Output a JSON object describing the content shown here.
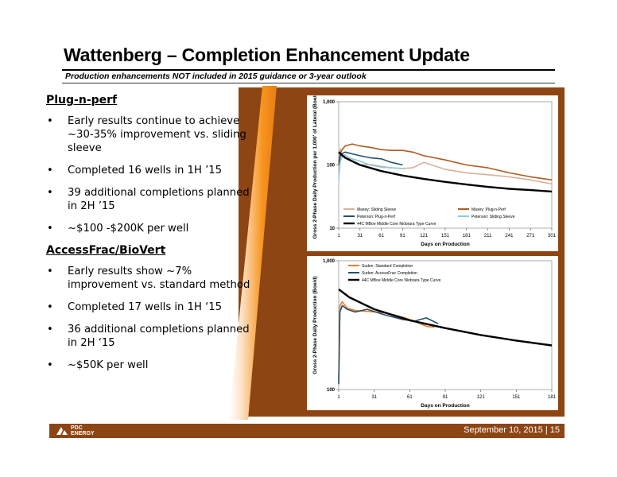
{
  "header": {
    "title": "Wattenberg – Completion Enhancement Update",
    "subtitle": "Production enhancements NOT included in 2015 guidance or 3-year outlook"
  },
  "plug_n_perf": {
    "heading": "Plug-n-perf",
    "bullets": [
      "Early results continue to achieve ~30-35% improvement vs. sliding sleeve",
      "Completed 16 wells in 1H ’15",
      "39 additional completions planned in 2H ’15",
      "~$100 -$200K per well"
    ]
  },
  "accessfrac": {
    "heading": "AccessFrac/BioVert",
    "bullets": [
      "Early results show ~7% improvement vs. standard method",
      "Completed 17 wells in 1H ‘15",
      "36 additional completions planned in 2H ‘15",
      "~$50K per well"
    ]
  },
  "footer": {
    "date": "September 10, 2015  |  15",
    "logo_line1": "PDC",
    "logo_line2": "ENERGY"
  },
  "chart_data": [
    {
      "type": "line",
      "xlabel": "Days on Production",
      "ylabel": "Gross 2-Phase Daily Production per 1,000' of Lateral (Boe/d)",
      "x_ticks": [
        1,
        31,
        61,
        91,
        121,
        151,
        181,
        211,
        241,
        271,
        301
      ],
      "y_ticks": [
        "10",
        "100",
        "1,000"
      ],
      "xlim": [
        1,
        301
      ],
      "ylim": [
        10,
        1000
      ],
      "y_scale": "log",
      "grid": false,
      "legend_position": "bottom",
      "series": [
        {
          "name": "Maxey: Sliding Sleeve",
          "color": "#d7b199",
          "x": [
            1,
            3,
            5,
            10,
            20,
            31,
            45,
            61,
            75,
            91,
            105,
            121,
            151,
            181,
            211,
            241,
            271,
            301
          ],
          "values": [
            90,
            180,
            135,
            145,
            115,
            100,
            102,
            95,
            90,
            88,
            90,
            110,
            85,
            75,
            70,
            65,
            58,
            50
          ]
        },
        {
          "name": "Maxey: Plug-n-Perf",
          "color": "#b05a20",
          "x": [
            1,
            3,
            5,
            10,
            20,
            31,
            45,
            61,
            75,
            91,
            105,
            121,
            151,
            181,
            211,
            241,
            271,
            301
          ],
          "values": [
            110,
            150,
            170,
            200,
            215,
            200,
            190,
            175,
            170,
            170,
            160,
            140,
            120,
            100,
            90,
            75,
            65,
            58
          ]
        },
        {
          "name": "Peterson: Plug-n-Perf",
          "color": "#24526b",
          "x": [
            1,
            3,
            5,
            10,
            20,
            31,
            45,
            61,
            75,
            91
          ],
          "values": [
            100,
            135,
            150,
            160,
            150,
            140,
            130,
            125,
            110,
            100
          ]
        },
        {
          "name": "Peterson: Sliding Sleeve",
          "color": "#8ccbe2",
          "x": [
            1,
            3,
            5,
            10,
            20,
            31,
            45,
            61,
            75,
            91
          ],
          "values": [
            60,
            110,
            130,
            140,
            125,
            115,
            100,
            92,
            90,
            88
          ]
        },
        {
          "name": "44C MBoe Middle Core Niobrara Type Curve",
          "color": "#000000",
          "x": [
            1,
            10,
            31,
            61,
            91,
            121,
            151,
            181,
            211,
            241,
            271,
            301
          ],
          "values": [
            160,
            130,
            100,
            80,
            68,
            60,
            54,
            49,
            45,
            42,
            40,
            38
          ]
        }
      ]
    },
    {
      "type": "line",
      "xlabel": "Days on Production",
      "ylabel": "Gross 2-Phase Daily Production (Boe/d)",
      "x_ticks": [
        1,
        31,
        61,
        91,
        121,
        151,
        181
      ],
      "y_ticks": [
        "100",
        "1,000"
      ],
      "xlim": [
        1,
        181
      ],
      "ylim": [
        100,
        1000
      ],
      "y_scale": "log",
      "grid": false,
      "legend_position": "top-left",
      "series": [
        {
          "name": "Suden: Standard Completion",
          "color": "#f07c22",
          "x": [
            1,
            2,
            4,
            8,
            15,
            25,
            40,
            55,
            65,
            75,
            82
          ],
          "values": [
            120,
            450,
            480,
            430,
            410,
            405,
            395,
            365,
            340,
            310,
            305
          ]
        },
        {
          "name": "Suden: AccessFrac Completion",
          "color": "#24526b",
          "x": [
            1,
            2,
            4,
            8,
            15,
            25,
            40,
            55,
            65,
            75,
            85
          ],
          "values": [
            110,
            400,
            450,
            420,
            400,
            420,
            380,
            350,
            340,
            360,
            325
          ]
        },
        {
          "name": "44C MBoe Middle Core Niobrara Type Curve",
          "color": "#000000",
          "x": [
            1,
            10,
            31,
            61,
            91,
            121,
            151,
            181
          ],
          "values": [
            600,
            520,
            420,
            345,
            300,
            265,
            240,
            220
          ]
        }
      ]
    }
  ]
}
